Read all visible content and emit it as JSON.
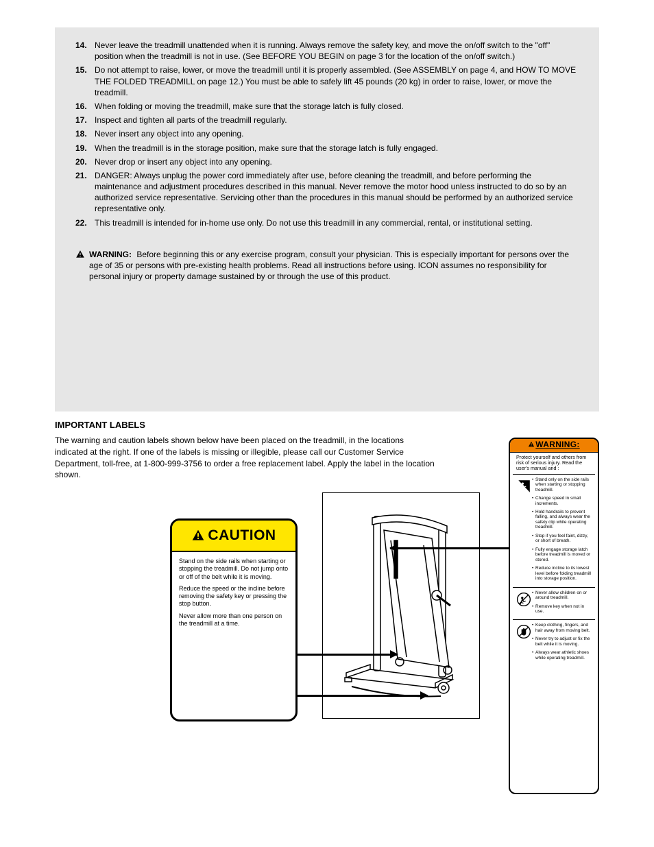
{
  "colors": {
    "gray_bg": "#e6e6e6",
    "caution_yellow": "#ffe600",
    "warning_orange": "#f08000",
    "text": "#000000"
  },
  "precautions": {
    "start_number": 14,
    "items": [
      "Never leave the treadmill unattended when it is running. Always remove the safety key, and move the on/off switch to the \"off\" position when the treadmill is not in use. (See BEFORE YOU BEGIN on page 3 for the location of the on/off switch.)",
      "Do not attempt to raise, lower, or move the treadmill until it is properly assembled. (See ASSEMBLY on page 4, and HOW TO MOVE THE FOLDED TREADMILL on page 12.) You must be able to safely lift 45 pounds (20 kg) in order to raise, lower, or move the treadmill.",
      "When folding or moving the treadmill, make sure that the storage latch is fully closed.",
      "Inspect and tighten all parts of the treadmill regularly.",
      "Never insert any object into any opening.",
      "When the treadmill is in the storage position, make sure that the storage latch is fully engaged.",
      "Never drop or insert any object into any opening.",
      "DANGER: Always unplug the power cord immediately after use, before cleaning the treadmill, and before performing the maintenance and adjustment procedures described in this manual. Never remove the motor hood unless instructed to do so by an authorized service representative. Servicing other than the procedures in this manual should be performed by an authorized service representative only.",
      "This treadmill is intended for in-home use only. Do not use this treadmill in any commercial, rental, or institutional setting."
    ],
    "warning_label": "WARNING:",
    "warning_text": "Before beginning this or any exercise program, consult your physician. This is especially important for persons over the age of 35 or persons with pre-existing health problems. Read all instructions before using. ICON assumes no responsibility for personal injury or property damage sustained by or through the use of this product."
  },
  "labels_section": {
    "title": "IMPORTANT LABELS",
    "body": "The warning and caution labels shown below have been placed on the treadmill, in the locations indicated at the right. If one of the labels is missing or illegible, please call our Customer Service Department, toll-free, at 1-800-999-3756 to order a free replacement label. Apply the label in the location shown."
  },
  "caution": {
    "header": "CAUTION",
    "lines": [
      "Stand on the side rails when starting or stopping the treadmill. Do not jump onto or off of the belt while it is moving.",
      "Reduce the speed or the incline before removing the safety key or pressing the stop button.",
      "Never allow more than one person on the treadmill at a time."
    ]
  },
  "warning": {
    "header": "WARNING:",
    "intro": "Protect yourself and others from risk of serious injury. Read the user's manual and :",
    "sections": [
      {
        "icon": "fall",
        "items": [
          "Stand only on the side rails when starting or stopping treadmill.",
          "Change speed in small increments.",
          "Hold handrails to prevent falling, and always wear the safety clip while operating treadmill.",
          "Stop if you feel faint, dizzy, or short of breath.",
          "Fully engage storage latch before treadmill is moved or stored.",
          "Reduce incline to its lowest level before folding treadmill into storage position."
        ]
      },
      {
        "icon": "child",
        "items": [
          "Never allow children on or around treadmill.",
          "Remove key when not in use."
        ]
      },
      {
        "icon": "hand",
        "items": [
          "Keep clothing, fingers, and hair away from moving belt.",
          "Never try to adjust or fix the belt while it is moving.",
          "Always wear athletic shoes while operating treadmill."
        ]
      }
    ]
  }
}
